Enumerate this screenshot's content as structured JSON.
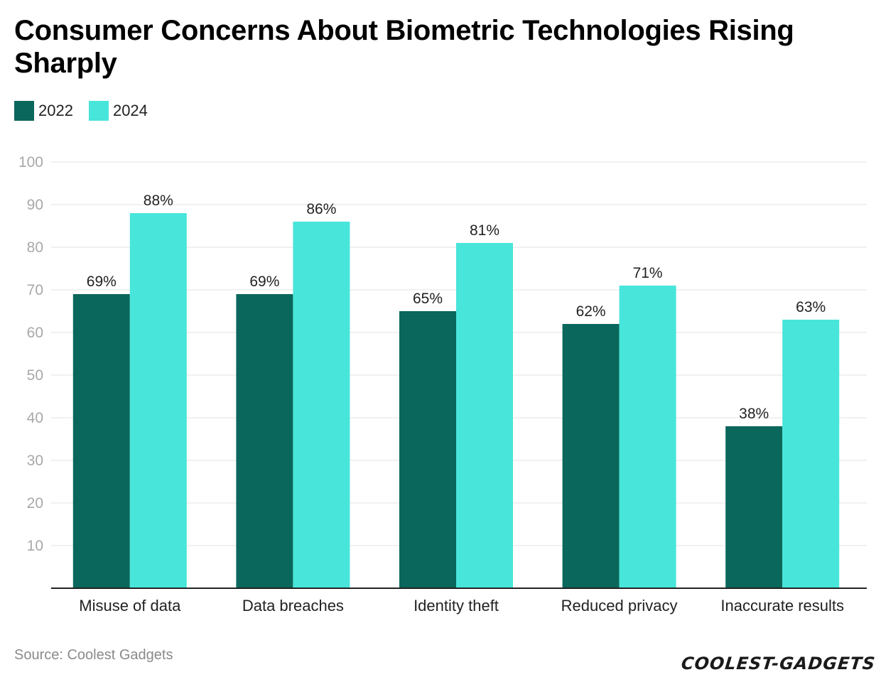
{
  "title": "Consumer Concerns About Biometric Technologies Rising Sharply",
  "legend": [
    {
      "label": "2022",
      "color": "#0a675c"
    },
    {
      "label": "2024",
      "color": "#48e5da"
    }
  ],
  "source": "Source: Coolest Gadgets",
  "logo": "COOLEST-GADGETS",
  "chart_data": {
    "type": "bar",
    "title": "Consumer Concerns About Biometric Technologies Rising Sharply",
    "xlabel": "",
    "ylabel": "",
    "ylim": [
      0,
      100
    ],
    "yticks": [
      10,
      20,
      30,
      40,
      50,
      60,
      70,
      80,
      90,
      100
    ],
    "grid": true,
    "legend_position": "top-left",
    "categories": [
      "Misuse of data",
      "Data breaches",
      "Identity theft",
      "Reduced privacy",
      "Inaccurate results"
    ],
    "series": [
      {
        "name": "2022",
        "color": "#0a675c",
        "values": [
          69,
          69,
          65,
          62,
          38
        ],
        "labels": [
          "69%",
          "69%",
          "65%",
          "62%",
          "38%"
        ]
      },
      {
        "name": "2024",
        "color": "#48e5da",
        "values": [
          88,
          86,
          81,
          71,
          63
        ],
        "labels": [
          "88%",
          "86%",
          "81%",
          "71%",
          "63%"
        ]
      }
    ]
  }
}
